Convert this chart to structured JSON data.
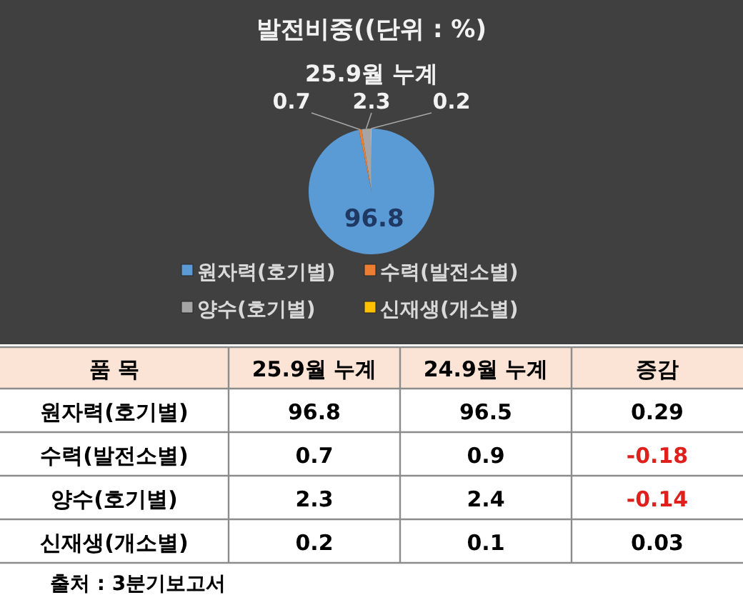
{
  "chart_data": [
    {
      "type": "pie",
      "title": "발전비중((단위 : %)",
      "subtitle": "25.9월 누계",
      "categories": [
        "원자력(호기별)",
        "수력(발전소별)",
        "양수(호기별)",
        "신재생(개소별)"
      ],
      "values": [
        96.8,
        0.7,
        2.3,
        0.2
      ],
      "colors": [
        "#5b9bd5",
        "#ed7d31",
        "#a5a5a5",
        "#ffc000"
      ],
      "data_labels": true,
      "legend": "bottom"
    },
    {
      "type": "other",
      "xlabel": "품 목",
      "categories": [
        "원자력(호기별)",
        "수력(발전소별)",
        "양수(호기별)",
        "신재생(개소별)"
      ],
      "series": [
        {
          "name": "25.9월 누계",
          "values": [
            96.8,
            0.7,
            2.3,
            0.2
          ]
        },
        {
          "name": "24.9월 누계",
          "values": [
            96.5,
            0.9,
            2.4,
            0.1
          ]
        },
        {
          "name": "증감",
          "values": [
            0.29,
            -0.18,
            -0.14,
            0.03
          ],
          "colors": [
            "#000000",
            "#e0201c",
            "#e0201c",
            "#000000"
          ]
        }
      ],
      "data_labels": true,
      "annotations": [
        "출처 : 3분기보고서"
      ]
    }
  ]
}
